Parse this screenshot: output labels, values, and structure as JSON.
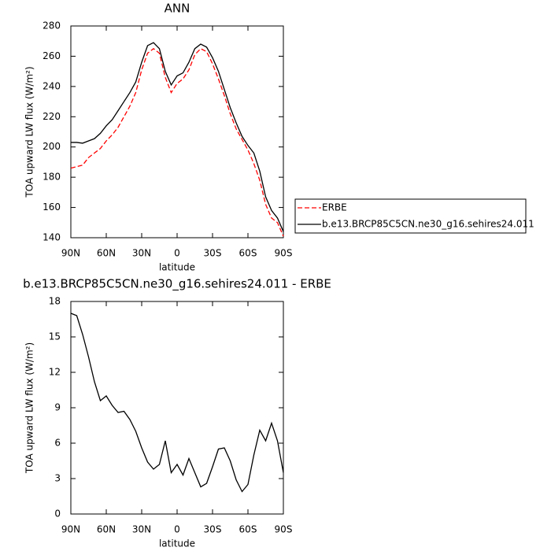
{
  "chart_data": [
    {
      "type": "line",
      "title": "ANN",
      "xlabel": "latitude",
      "ylabel": "TOA upward LW flux (W/m²)",
      "x": [
        90,
        85,
        80,
        75,
        70,
        65,
        60,
        55,
        50,
        45,
        40,
        35,
        30,
        25,
        20,
        15,
        10,
        5,
        0,
        -5,
        -10,
        -15,
        -20,
        -25,
        -30,
        -35,
        -40,
        -45,
        -50,
        -55,
        -60,
        -65,
        -70,
        -75,
        -80,
        -85,
        -90
      ],
      "series": [
        {
          "name": "ERBE",
          "color": "#ff0000",
          "line_style": "dashed",
          "values": [
            186,
            187,
            188,
            193,
            196,
            199,
            204,
            208,
            213,
            220,
            227,
            236,
            251,
            262,
            265,
            262,
            246,
            236,
            242,
            245,
            251,
            261,
            265,
            263,
            255,
            245,
            234,
            222,
            212,
            205,
            198,
            189,
            178,
            162,
            153,
            150,
            141
          ]
        },
        {
          "name": "b.e13.BRCP85C5CN.ne30_g16.sehires24.011",
          "color": "#000000",
          "line_style": "solid",
          "values": [
            203,
            203,
            202.5,
            204,
            205.5,
            209,
            214,
            218,
            224,
            230,
            236,
            243,
            256,
            267,
            269,
            265,
            250,
            241,
            247,
            249,
            256,
            265,
            268,
            266,
            259,
            250,
            238,
            226,
            216,
            207,
            201,
            196,
            184,
            167,
            158,
            153,
            144
          ]
        }
      ],
      "xlim": [
        90,
        -90
      ],
      "xticks": [
        {
          "value": 90,
          "label": "90N"
        },
        {
          "value": 60,
          "label": "60N"
        },
        {
          "value": 30,
          "label": "30N"
        },
        0,
        {
          "value": -30,
          "label": "30S"
        },
        {
          "value": -60,
          "label": "60S"
        },
        {
          "value": -90,
          "label": "90S"
        }
      ],
      "ylim": [
        140,
        280
      ],
      "yticks": [
        140,
        160,
        180,
        200,
        220,
        240,
        260,
        280
      ],
      "legend": "right"
    },
    {
      "type": "line",
      "title": "b.e13.BRCP85C5CN.ne30_g16.sehires24.011 - ERBE",
      "xlabel": "latitude",
      "ylabel": "TOA upward LW flux (W/m²)",
      "x": [
        90,
        85,
        80,
        75,
        70,
        65,
        60,
        55,
        50,
        45,
        40,
        35,
        30,
        25,
        20,
        15,
        10,
        5,
        0,
        -5,
        -10,
        -15,
        -20,
        -25,
        -30,
        -35,
        -40,
        -45,
        -50,
        -55,
        -60,
        -65,
        -70,
        -75,
        -80,
        -85,
        -90
      ],
      "series": [
        {
          "color": "#000000",
          "line_style": "solid",
          "values": [
            17,
            16.8,
            15.2,
            13.3,
            11.2,
            9.6,
            10.0,
            9.2,
            8.6,
            8.7,
            8.0,
            7.0,
            5.6,
            4.4,
            3.8,
            4.2,
            6.2,
            3.5,
            4.2,
            3.3,
            4.7,
            3.5,
            2.3,
            2.6,
            4.0,
            5.5,
            5.6,
            4.5,
            2.9,
            1.9,
            2.5,
            5.0,
            7.1,
            6.2,
            7.7,
            6.2,
            3.5
          ]
        }
      ],
      "xlim": [
        90,
        -90
      ],
      "xticks": [
        {
          "value": 90,
          "label": "90N"
        },
        {
          "value": 60,
          "label": "60N"
        },
        {
          "value": 30,
          "label": "30N"
        },
        0,
        {
          "value": -30,
          "label": "30S"
        },
        {
          "value": -60,
          "label": "60S"
        },
        {
          "value": -90,
          "label": "90S"
        }
      ],
      "ylim": [
        0,
        18
      ],
      "yticks": [
        0,
        3,
        6,
        9,
        12,
        15,
        18
      ]
    }
  ]
}
